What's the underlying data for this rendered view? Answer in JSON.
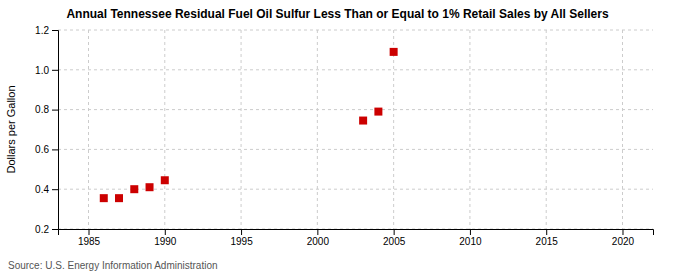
{
  "chart_data": {
    "type": "scatter",
    "title": "Annual Tennessee Residual Fuel Oil Sulfur Less Than or Equal to 1% Retail Sales by All Sellers",
    "ylabel": "Dollars per Gallon",
    "annotations": [
      "Source: U.S. Energy Information Administration"
    ],
    "x": [
      1986,
      1987,
      1988,
      1989,
      1990,
      2003,
      2004,
      2005
    ],
    "values": [
      0.355,
      0.355,
      0.4,
      0.41,
      0.445,
      0.745,
      0.79,
      1.09
    ],
    "color": "#cc0000",
    "marker": "square",
    "xlim": [
      1983,
      2022
    ],
    "ylim": [
      0.2,
      1.2
    ],
    "xticks": [
      1985,
      1990,
      1995,
      2000,
      2005,
      2010,
      2015,
      2020
    ],
    "yticks": [
      0.2,
      0.4,
      0.6,
      0.8,
      {
        "value": 1.0,
        "label": "1.0"
      },
      1.2
    ],
    "grid": true
  }
}
